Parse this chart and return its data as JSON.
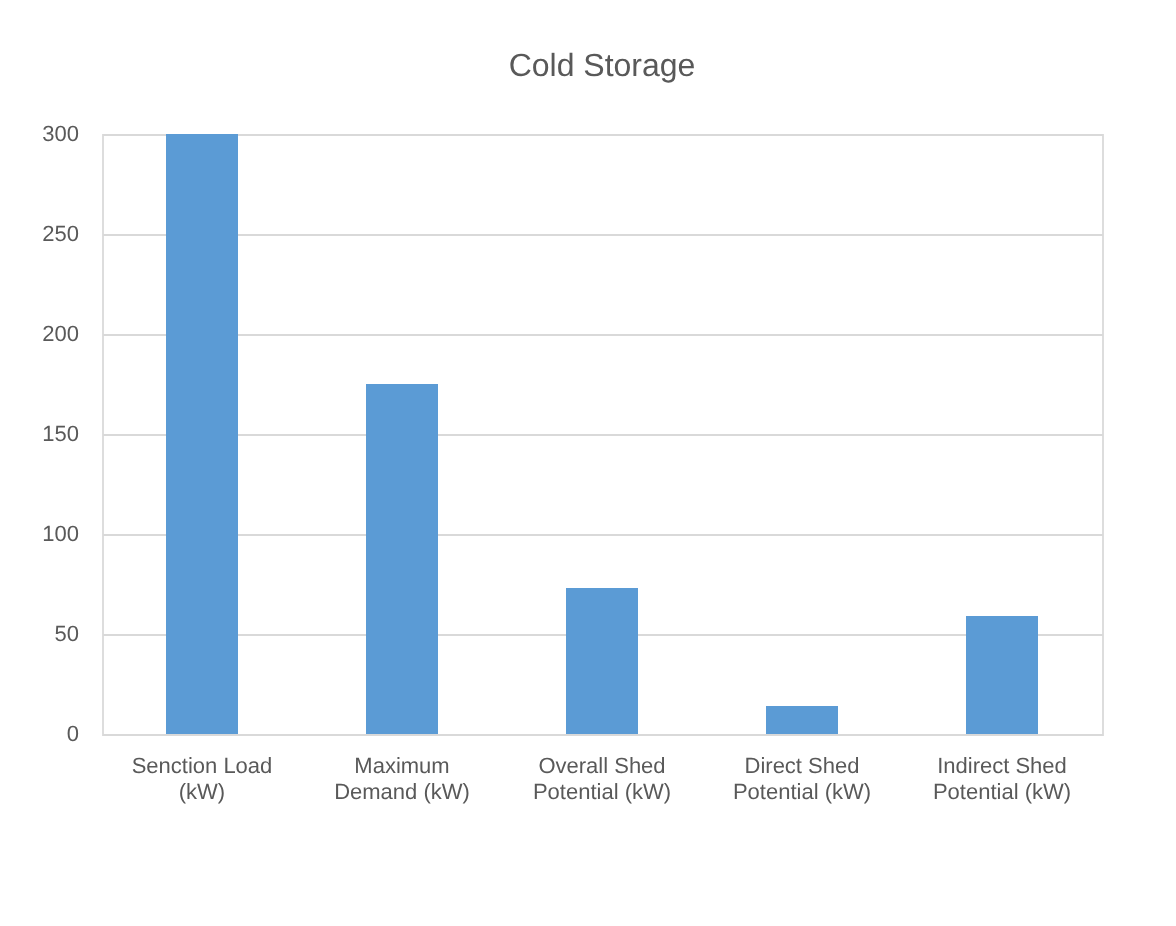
{
  "chart_data": {
    "type": "bar",
    "title": "Cold Storage",
    "categories": [
      "Senction Load\n(kW)",
      "Maximum\nDemand (kW)",
      "Overall Shed\nPotential (kW)",
      "Direct Shed\nPotential (kW)",
      "Indirect Shed\nPotential (kW)"
    ],
    "values": [
      300,
      175,
      73,
      14,
      59
    ],
    "color": "#5b9bd5",
    "ylim": [
      0,
      300
    ],
    "yticks": [
      0,
      50,
      100,
      150,
      200,
      250,
      300
    ],
    "grid": "y"
  }
}
